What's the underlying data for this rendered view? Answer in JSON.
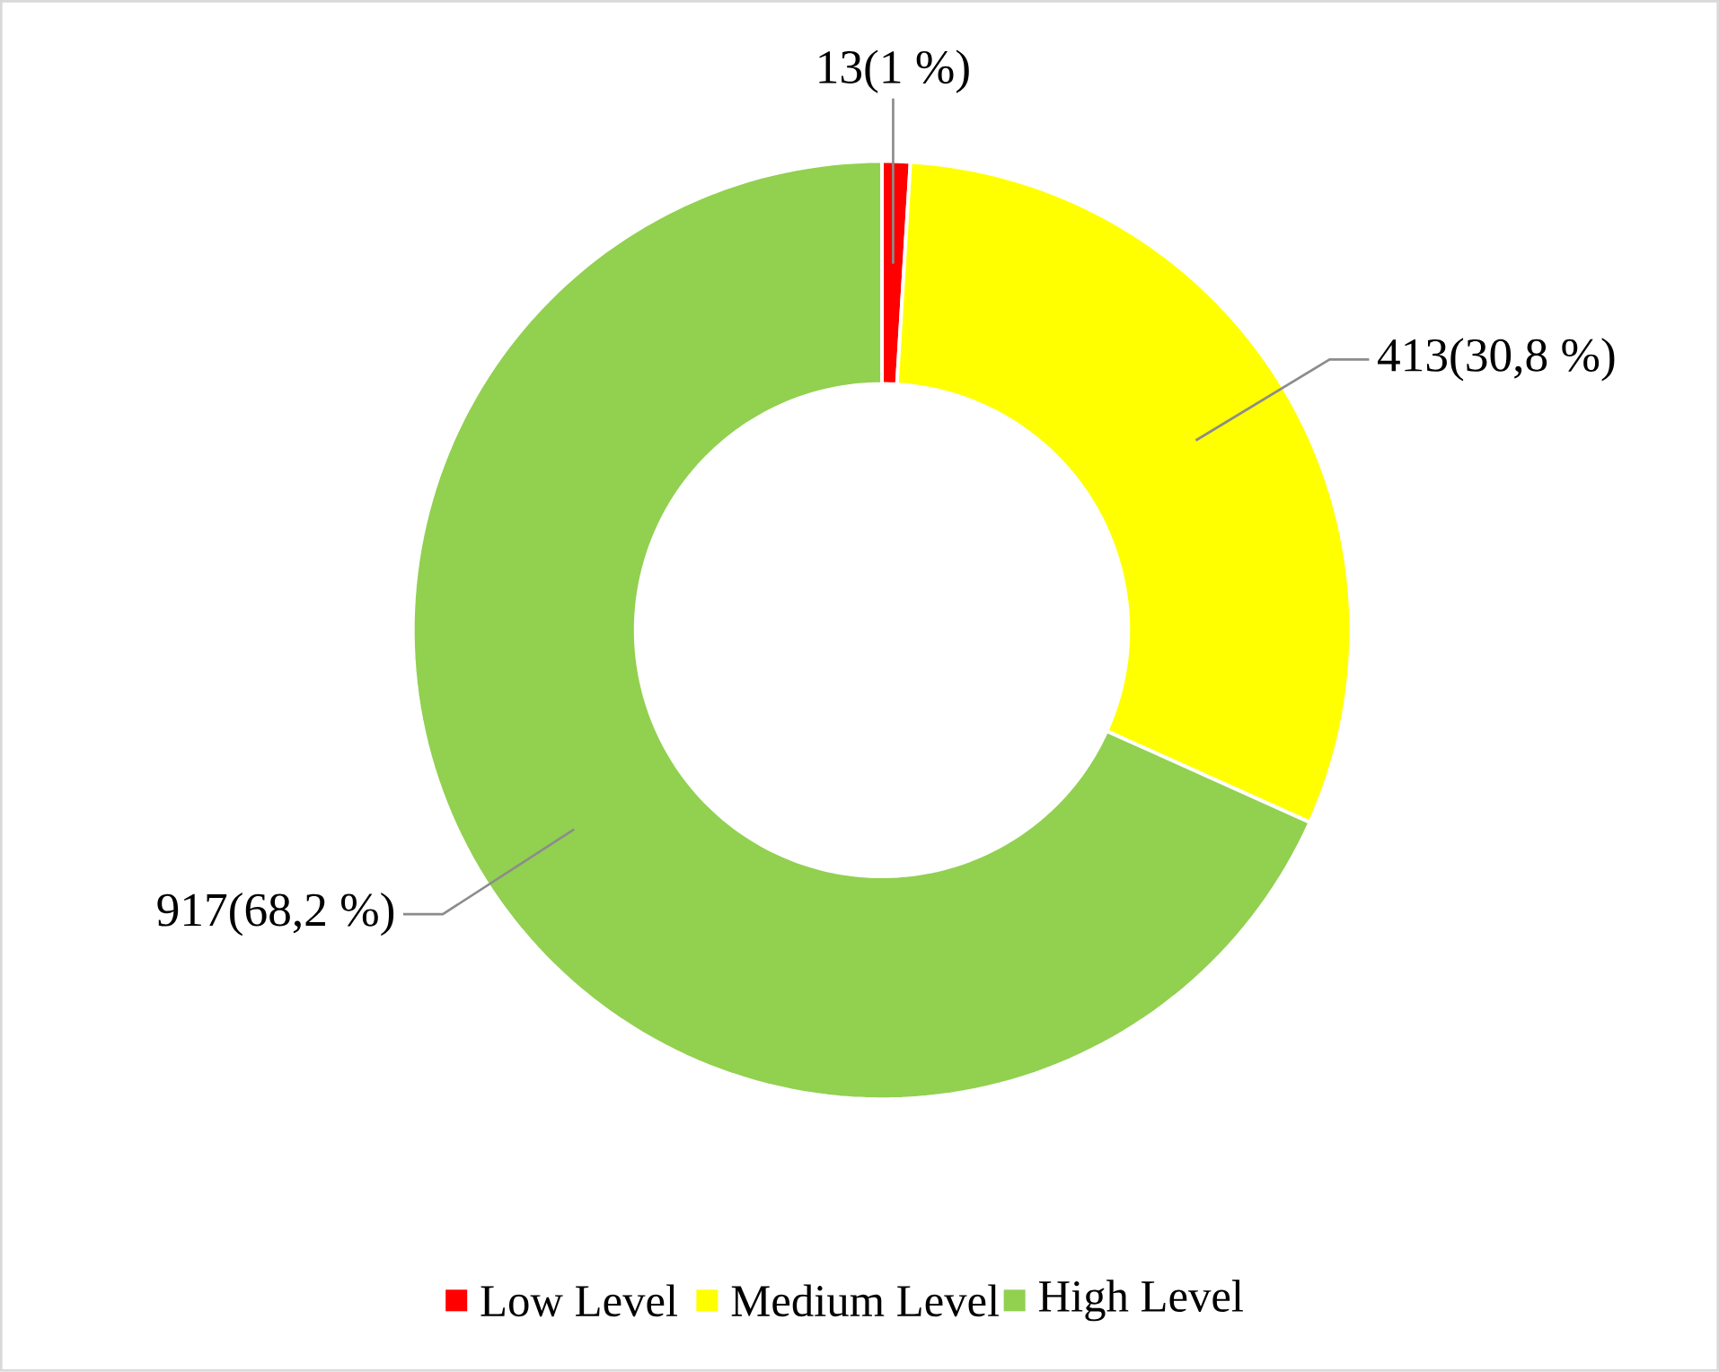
{
  "chart_data": {
    "type": "donut",
    "categories": [
      "Low Level",
      "Medium Level",
      "High Level"
    ],
    "values": [
      13,
      413,
      917
    ],
    "colors": [
      "#ff0000",
      "#ffff00",
      "#92d050"
    ],
    "value_labels": [
      "13(1 %)",
      "413(30,8 %)",
      "917(68,2 %)"
    ],
    "legend": "bottom"
  }
}
